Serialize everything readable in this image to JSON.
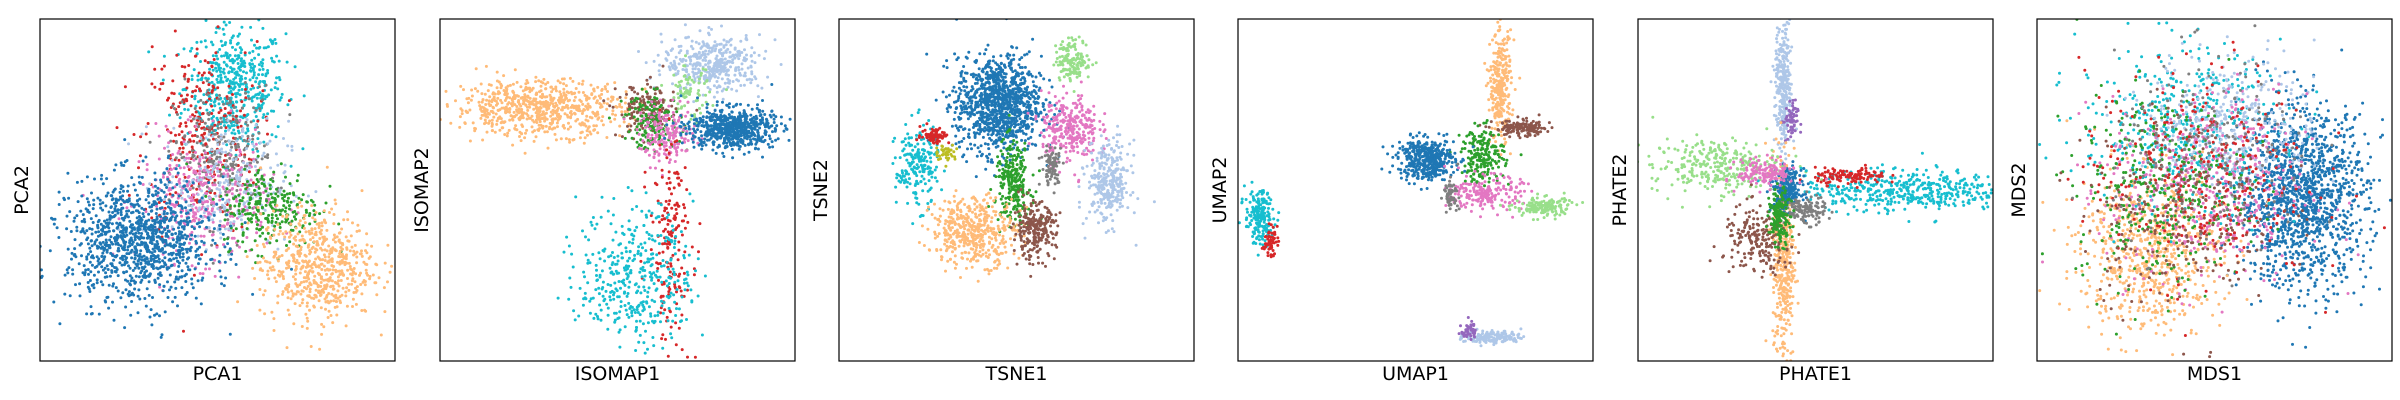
{
  "colors": {
    "c0": "#1f77b4",
    "c1": "#ffbb78",
    "c2": "#2ca02c",
    "c3": "#d62728",
    "c4": "#17becf",
    "c5": "#aec7e8",
    "c6": "#8c564b",
    "c7": "#e377c2",
    "c8": "#7f7f7f",
    "c9": "#98df8a",
    "c10": "#9467bd",
    "c11": "#bcbd22"
  },
  "chart_data": [
    {
      "type": "scatter",
      "xlabel": "PCA1",
      "ylabel": "PCA2",
      "xlim": [
        0,
        100
      ],
      "ylim": [
        0,
        100
      ],
      "ticks": "none",
      "grid": false,
      "clusters": [
        {
          "color": "c4",
          "cx": 55,
          "cy": 80,
          "sx": 7,
          "sy": 9,
          "n": 500
        },
        {
          "color": "c3",
          "cx": 45,
          "cy": 65,
          "sx": 8,
          "sy": 14,
          "n": 300
        },
        {
          "color": "c8",
          "cx": 52,
          "cy": 60,
          "sx": 7,
          "sy": 10,
          "n": 250
        },
        {
          "color": "c7",
          "cx": 46,
          "cy": 47,
          "sx": 9,
          "sy": 9,
          "n": 350
        },
        {
          "color": "c5",
          "cx": 52,
          "cy": 52,
          "sx": 9,
          "sy": 9,
          "n": 250
        },
        {
          "color": "c2",
          "cx": 65,
          "cy": 45,
          "sx": 7,
          "sy": 6,
          "n": 250
        },
        {
          "color": "c1",
          "cx": 78,
          "cy": 28,
          "sx": 8,
          "sy": 8,
          "n": 600
        },
        {
          "color": "c0",
          "cx": 28,
          "cy": 35,
          "sx": 10,
          "sy": 9,
          "n": 1100
        }
      ]
    },
    {
      "type": "scatter",
      "xlabel": "ISOMAP1",
      "ylabel": "ISOMAP2",
      "xlim": [
        0,
        100
      ],
      "ylim": [
        0,
        100
      ],
      "ticks": "none",
      "grid": false,
      "clusters": [
        {
          "color": "c1",
          "cx": 28,
          "cy": 74,
          "sx": 12,
          "sy": 4,
          "n": 700
        },
        {
          "color": "c5",
          "cx": 77,
          "cy": 87,
          "sx": 7,
          "sy": 4,
          "n": 400
        },
        {
          "color": "c9",
          "cx": 70,
          "cy": 78,
          "sx": 3,
          "sy": 4,
          "n": 80
        },
        {
          "color": "c6",
          "cx": 58,
          "cy": 73,
          "sx": 4,
          "sy": 4,
          "n": 150
        },
        {
          "color": "c2",
          "cx": 60,
          "cy": 70,
          "sx": 4,
          "sy": 4,
          "n": 150
        },
        {
          "color": "c7",
          "cx": 64,
          "cy": 66,
          "sx": 4,
          "sy": 4,
          "n": 180
        },
        {
          "color": "c0",
          "cx": 82,
          "cy": 68,
          "sx": 6,
          "sy": 3,
          "n": 650
        },
        {
          "color": "c3",
          "cx": 65,
          "cy": 35,
          "sx": 3,
          "sy": 15,
          "n": 180
        },
        {
          "color": "c4",
          "cx": 55,
          "cy": 25,
          "sx": 8,
          "sy": 10,
          "n": 400
        }
      ]
    },
    {
      "type": "scatter",
      "xlabel": "TSNE1",
      "ylabel": "TSNE2",
      "xlim": [
        0,
        100
      ],
      "ylim": [
        0,
        100
      ],
      "ticks": "none",
      "grid": false,
      "clusters": [
        {
          "color": "c0",
          "cx": 45,
          "cy": 75,
          "sx": 6,
          "sy": 7,
          "n": 1100
        },
        {
          "color": "c9",
          "cx": 66,
          "cy": 88,
          "sx": 2.5,
          "sy": 3,
          "n": 150
        },
        {
          "color": "c7",
          "cx": 65,
          "cy": 68,
          "sx": 4,
          "sy": 5,
          "n": 300
        },
        {
          "color": "c2",
          "cx": 49,
          "cy": 52,
          "sx": 2.5,
          "sy": 6,
          "n": 250
        },
        {
          "color": "c5",
          "cx": 76,
          "cy": 52,
          "sx": 3,
          "sy": 6,
          "n": 300
        },
        {
          "color": "c4",
          "cx": 22,
          "cy": 57,
          "sx": 3,
          "sy": 6,
          "n": 200
        },
        {
          "color": "c1",
          "cx": 38,
          "cy": 38,
          "sx": 6,
          "sy": 5,
          "n": 450
        },
        {
          "color": "c6",
          "cx": 55,
          "cy": 38,
          "sx": 3,
          "sy": 4,
          "n": 250
        },
        {
          "color": "c8",
          "cx": 60,
          "cy": 57,
          "sx": 1.5,
          "sy": 3,
          "n": 80
        },
        {
          "color": "c3",
          "cx": 27,
          "cy": 66,
          "sx": 2,
          "sy": 1.2,
          "n": 70
        },
        {
          "color": "c11",
          "cx": 30,
          "cy": 61,
          "sx": 1.5,
          "sy": 1.2,
          "n": 40
        }
      ]
    },
    {
      "type": "scatter",
      "xlabel": "UMAP1",
      "ylabel": "UMAP2",
      "xlim": [
        0,
        100
      ],
      "ylim": [
        0,
        100
      ],
      "ticks": "none",
      "grid": false,
      "clusters": [
        {
          "color": "c1",
          "cx": 74,
          "cy": 80,
          "sx": 1.5,
          "sy": 8,
          "n": 300
        },
        {
          "color": "c6",
          "cx": 80,
          "cy": 68,
          "sx": 4,
          "sy": 1.2,
          "n": 150
        },
        {
          "color": "c2",
          "cx": 69,
          "cy": 60,
          "sx": 3,
          "sy": 4,
          "n": 200
        },
        {
          "color": "c0",
          "cx": 53,
          "cy": 59,
          "sx": 4,
          "sy": 3,
          "n": 450
        },
        {
          "color": "c7",
          "cx": 70,
          "cy": 49,
          "sx": 5,
          "sy": 2.5,
          "n": 200
        },
        {
          "color": "c9",
          "cx": 86,
          "cy": 45,
          "sx": 4,
          "sy": 1.5,
          "n": 150
        },
        {
          "color": "c8",
          "cx": 60,
          "cy": 49,
          "sx": 1,
          "sy": 2,
          "n": 60
        },
        {
          "color": "c4",
          "cx": 6,
          "cy": 42,
          "sx": 2,
          "sy": 4,
          "n": 200
        },
        {
          "color": "c3",
          "cx": 9,
          "cy": 35,
          "sx": 1,
          "sy": 2,
          "n": 60
        },
        {
          "color": "c5",
          "cx": 72,
          "cy": 7,
          "sx": 4,
          "sy": 1,
          "n": 150
        },
        {
          "color": "c10",
          "cx": 65,
          "cy": 9,
          "sx": 1,
          "sy": 1.5,
          "n": 40
        }
      ]
    },
    {
      "type": "scatter",
      "xlabel": "PHATE1",
      "ylabel": "PHATE2",
      "xlim": [
        0,
        100
      ],
      "ylim": [
        0,
        100
      ],
      "ticks": "none",
      "grid": false,
      "clusters": [
        {
          "color": "c5",
          "cx": 41,
          "cy": 80,
          "sx": 1.2,
          "sy": 9,
          "n": 300
        },
        {
          "color": "c10",
          "cx": 43,
          "cy": 70,
          "sx": 1,
          "sy": 3,
          "n": 60
        },
        {
          "color": "c1",
          "cx": 41,
          "cy": 30,
          "sx": 1.5,
          "sy": 16,
          "n": 400
        },
        {
          "color": "c9",
          "cx": 22,
          "cy": 57,
          "sx": 9,
          "sy": 4,
          "n": 300
        },
        {
          "color": "c4",
          "cx": 75,
          "cy": 50,
          "sx": 14,
          "sy": 3,
          "n": 450
        },
        {
          "color": "c3",
          "cx": 60,
          "cy": 54,
          "sx": 5,
          "sy": 1.2,
          "n": 120
        },
        {
          "color": "c6",
          "cx": 34,
          "cy": 35,
          "sx": 5,
          "sy": 5,
          "n": 200
        },
        {
          "color": "c0",
          "cx": 42,
          "cy": 50,
          "sx": 2,
          "sy": 3,
          "n": 250
        },
        {
          "color": "c7",
          "cx": 36,
          "cy": 55,
          "sx": 4,
          "sy": 2,
          "n": 150
        },
        {
          "color": "c8",
          "cx": 47,
          "cy": 44,
          "sx": 3,
          "sy": 2,
          "n": 120
        },
        {
          "color": "c2",
          "cx": 40,
          "cy": 42,
          "sx": 1.5,
          "sy": 4,
          "n": 150
        }
      ]
    },
    {
      "type": "scatter",
      "xlabel": "MDS1",
      "ylabel": "MDS2",
      "xlim": [
        0,
        100
      ],
      "ylim": [
        0,
        100
      ],
      "ticks": "none",
      "grid": false,
      "clusters": [
        {
          "color": "c0",
          "cx": 75,
          "cy": 48,
          "sx": 9,
          "sy": 13,
          "n": 1400
        },
        {
          "color": "c1",
          "cx": 32,
          "cy": 32,
          "sx": 10,
          "sy": 12,
          "n": 700
        },
        {
          "color": "c4",
          "cx": 40,
          "cy": 68,
          "sx": 14,
          "sy": 12,
          "n": 450
        },
        {
          "color": "c5",
          "cx": 55,
          "cy": 70,
          "sx": 12,
          "sy": 10,
          "n": 350
        },
        {
          "color": "c7",
          "cx": 48,
          "cy": 50,
          "sx": 14,
          "sy": 14,
          "n": 450
        },
        {
          "color": "c2",
          "cx": 35,
          "cy": 50,
          "sx": 12,
          "sy": 14,
          "n": 350
        },
        {
          "color": "c3",
          "cx": 45,
          "cy": 55,
          "sx": 16,
          "sy": 16,
          "n": 300
        },
        {
          "color": "c6",
          "cx": 40,
          "cy": 45,
          "sx": 14,
          "sy": 14,
          "n": 250
        },
        {
          "color": "c8",
          "cx": 50,
          "cy": 60,
          "sx": 14,
          "sy": 14,
          "n": 200
        }
      ]
    }
  ]
}
